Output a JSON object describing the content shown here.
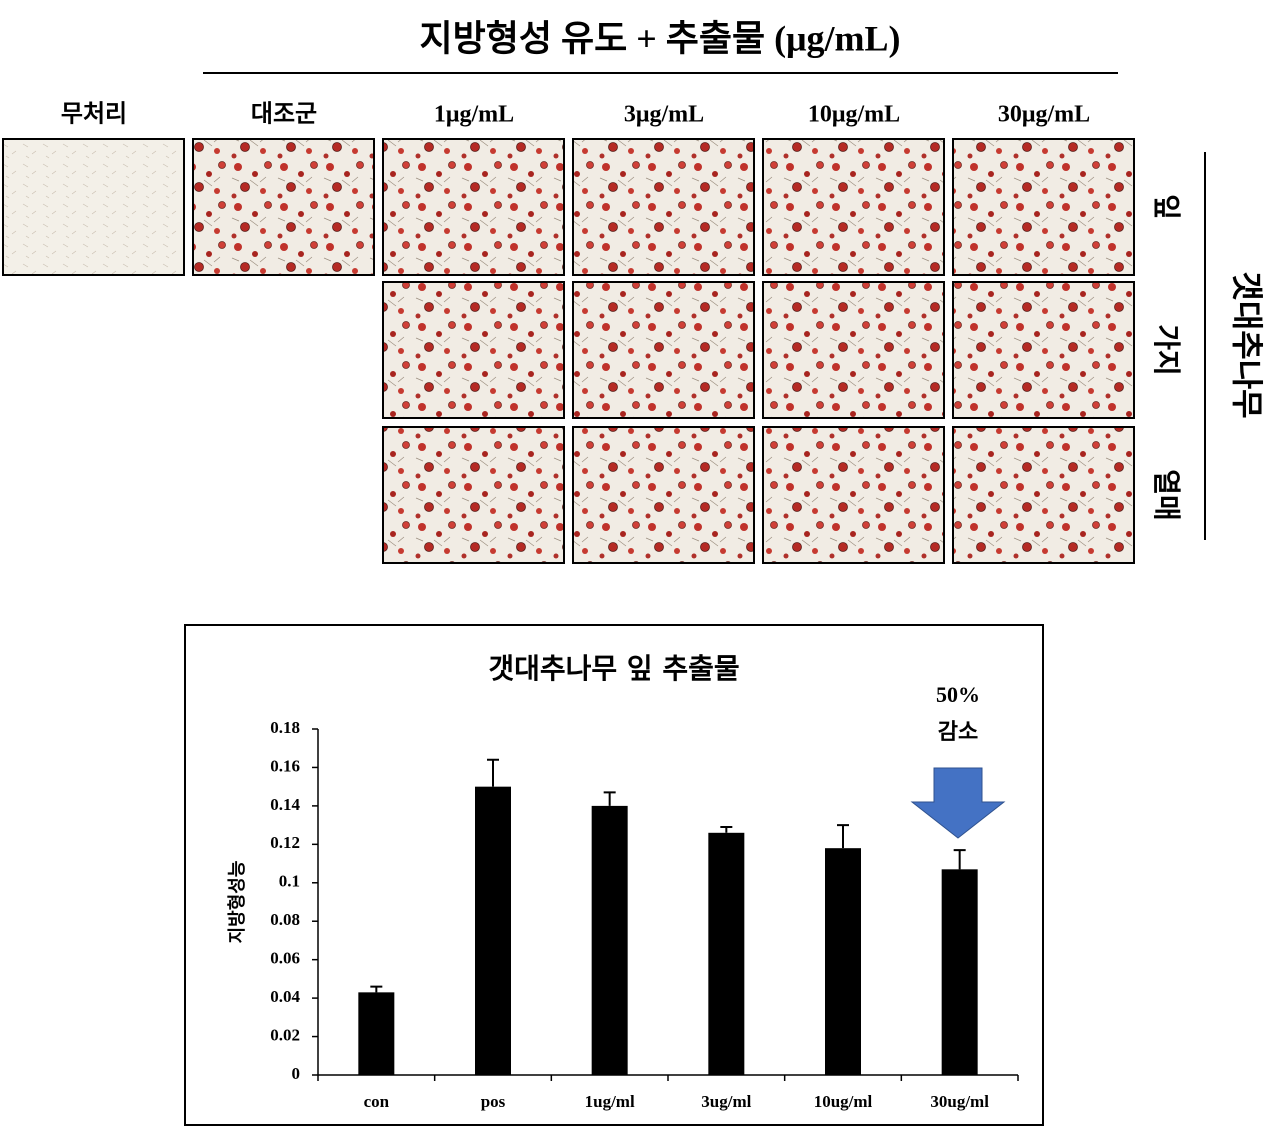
{
  "figure": {
    "title": "지방형성 유도 + 추출물 (μg/mL)",
    "columns": [
      "무처리",
      "대조군",
      "1μg/mL",
      "3μg/mL",
      "10μg/mL",
      "30μg/mL"
    ],
    "rows": [
      "잎",
      "가지",
      "열매"
    ],
    "group": "갯대추나무"
  },
  "chart_data": {
    "type": "bar",
    "title": "갯대추나무 잎 추출물",
    "y_label": "지방형성능",
    "categories": [
      "con",
      "pos",
      "1ug/ml",
      "3ug/ml",
      "10ug/ml",
      "30ug/ml"
    ],
    "values": [
      0.043,
      0.15,
      0.14,
      0.126,
      0.118,
      0.107
    ],
    "errors": [
      0.003,
      0.014,
      0.007,
      0.003,
      0.012,
      0.01
    ],
    "color": "#000000",
    "ylim": [
      0,
      0.18
    ],
    "yticks": [
      0,
      0.02,
      0.04,
      0.06,
      0.08,
      0.1,
      0.12,
      0.14,
      0.16,
      0.18
    ],
    "annotation": [
      "50%",
      "감소"
    ]
  }
}
